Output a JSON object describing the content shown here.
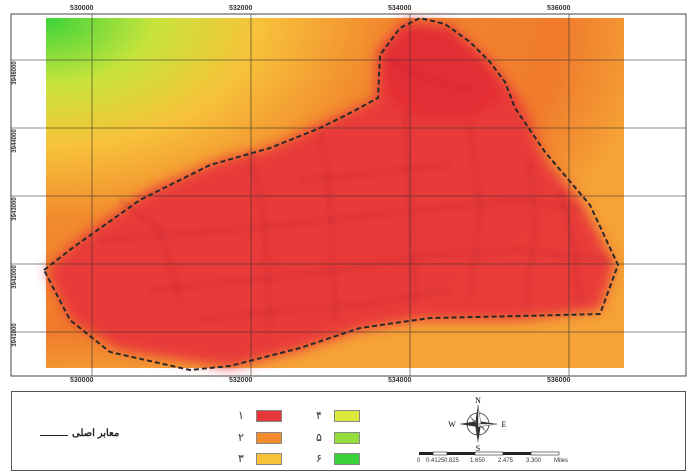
{
  "map": {
    "x_ticks": [
      "530000",
      "532000",
      "534000",
      "536000"
    ],
    "y_ticks": [
      "3946000",
      "3944000",
      "3943000",
      "3942000",
      "3941000"
    ]
  },
  "legend": {
    "line_label": "معابر اصلی",
    "classes": [
      {
        "label": "۱",
        "color": "#e8373a"
      },
      {
        "label": "۲",
        "color": "#f28a2e"
      },
      {
        "label": "۳",
        "color": "#f7c23a"
      },
      {
        "label": "۴",
        "color": "#dfe83c"
      },
      {
        "label": "۵",
        "color": "#95dd3c"
      },
      {
        "label": "۶",
        "color": "#3ad33a"
      }
    ]
  },
  "compass": {
    "n": "N",
    "s": "S",
    "e": "E",
    "w": "W"
  },
  "scale": {
    "labels": [
      "0",
      "0.4125",
      "0.825",
      "1.650",
      "2.475",
      "3.300"
    ],
    "unit": "Miles"
  }
}
